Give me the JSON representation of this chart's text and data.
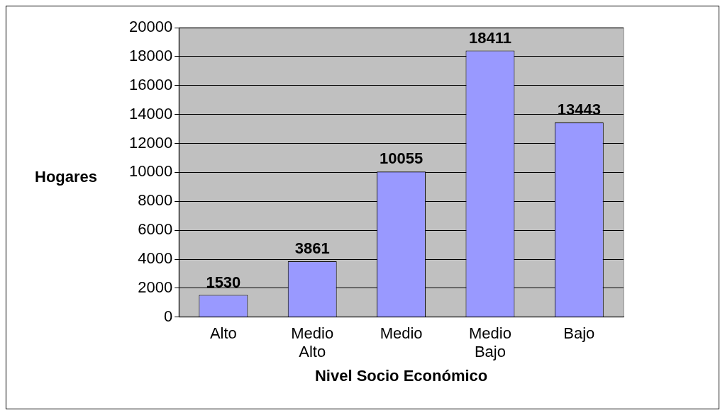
{
  "chart_data": {
    "type": "bar",
    "xlabel": "Nivel Socio Económico",
    "ylabel": "Hogares",
    "categories": [
      "Alto",
      "Medio Alto",
      "Medio",
      "Medio Bajo",
      "Bajo"
    ],
    "values": [
      1530,
      3861,
      10055,
      18411,
      13443
    ],
    "color": "#9999ff",
    "ylim": [
      0,
      20000
    ],
    "yticks": [
      0,
      2000,
      4000,
      6000,
      8000,
      10000,
      12000,
      14000,
      16000,
      18000,
      20000
    ],
    "grid": "y",
    "data_labels": true,
    "legend": false
  }
}
